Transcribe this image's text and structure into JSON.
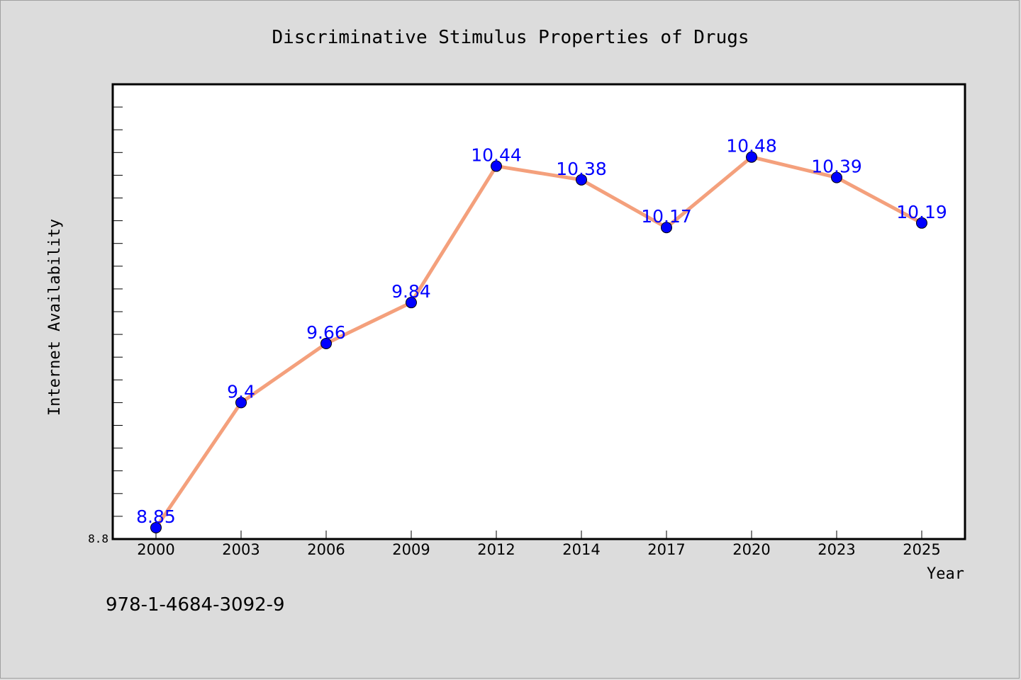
{
  "chart_data": {
    "type": "line",
    "title": "Discriminative Stimulus Properties of Drugs",
    "xlabel": "Year",
    "ylabel": "Internet Availability",
    "categories": [
      "2000",
      "2003",
      "2006",
      "2009",
      "2012",
      "2014",
      "2017",
      "2020",
      "2023",
      "2025"
    ],
    "series": [
      {
        "values": [
          8.85,
          9.4,
          9.66,
          9.84,
          10.44,
          10.38,
          10.17,
          10.48,
          10.39,
          10.19
        ],
        "labels": [
          "8.85",
          "9.4",
          "9.66",
          "9.84",
          "10.44",
          "10.38",
          "10.17",
          "10.48",
          "10.39",
          "10.19"
        ],
        "line_color": "#f4a07c",
        "marker_color": "#0000ff"
      }
    ],
    "y_tick_labels": [
      "8.8"
    ],
    "ylim": [
      8.8,
      10.8
    ],
    "grid": false,
    "legend": "none"
  },
  "footer_text": "978-1-4684-3092-9",
  "colors": {
    "background": "#dcdcdc",
    "plot_background": "#ffffff",
    "line": "#f4a07c",
    "marker": "#0000ff",
    "data_label": "#0000ff"
  }
}
